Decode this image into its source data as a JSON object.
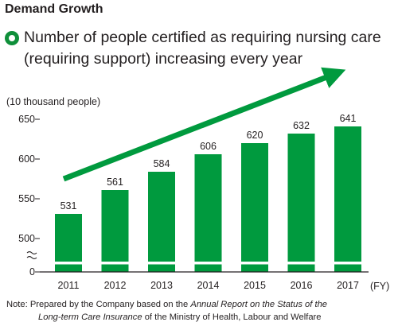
{
  "heading": "Demand Growth",
  "subheading": {
    "line1": "Number of people certified as requiring nursing care",
    "line2": "(requiring support) increasing every year"
  },
  "note": {
    "line1_a": "Note: Prepared by the Company based on the ",
    "line1_b": "Annual Report on the Status of the",
    "line2_a": "Long-term Care Insurance",
    "line2_b": " of the Ministry of Health, Labour and Welfare"
  },
  "colors": {
    "bar": "#009a3e",
    "bullet": "#0f8f3a",
    "text": "#231f20",
    "axis": "#231f20"
  },
  "chart_data": {
    "type": "bar",
    "categories": [
      "2011",
      "2012",
      "2013",
      "2014",
      "2015",
      "2016",
      "2017"
    ],
    "values": [
      531,
      561,
      584,
      606,
      620,
      632,
      641
    ],
    "data_labels": [
      "531",
      "561",
      "584",
      "606",
      "620",
      "632",
      "641"
    ],
    "xlabel": "(FY)",
    "ylabel": "(10 thousand people)",
    "yticks": [
      0,
      500,
      550,
      600,
      650
    ],
    "ytick_labels": [
      "0",
      "500",
      "550",
      "600",
      "650"
    ],
    "ylim": [
      0,
      650
    ],
    "axis_break": "between 0 and 500",
    "grid": false,
    "trend_arrow": "rising, from first bar to beyond last bar"
  }
}
